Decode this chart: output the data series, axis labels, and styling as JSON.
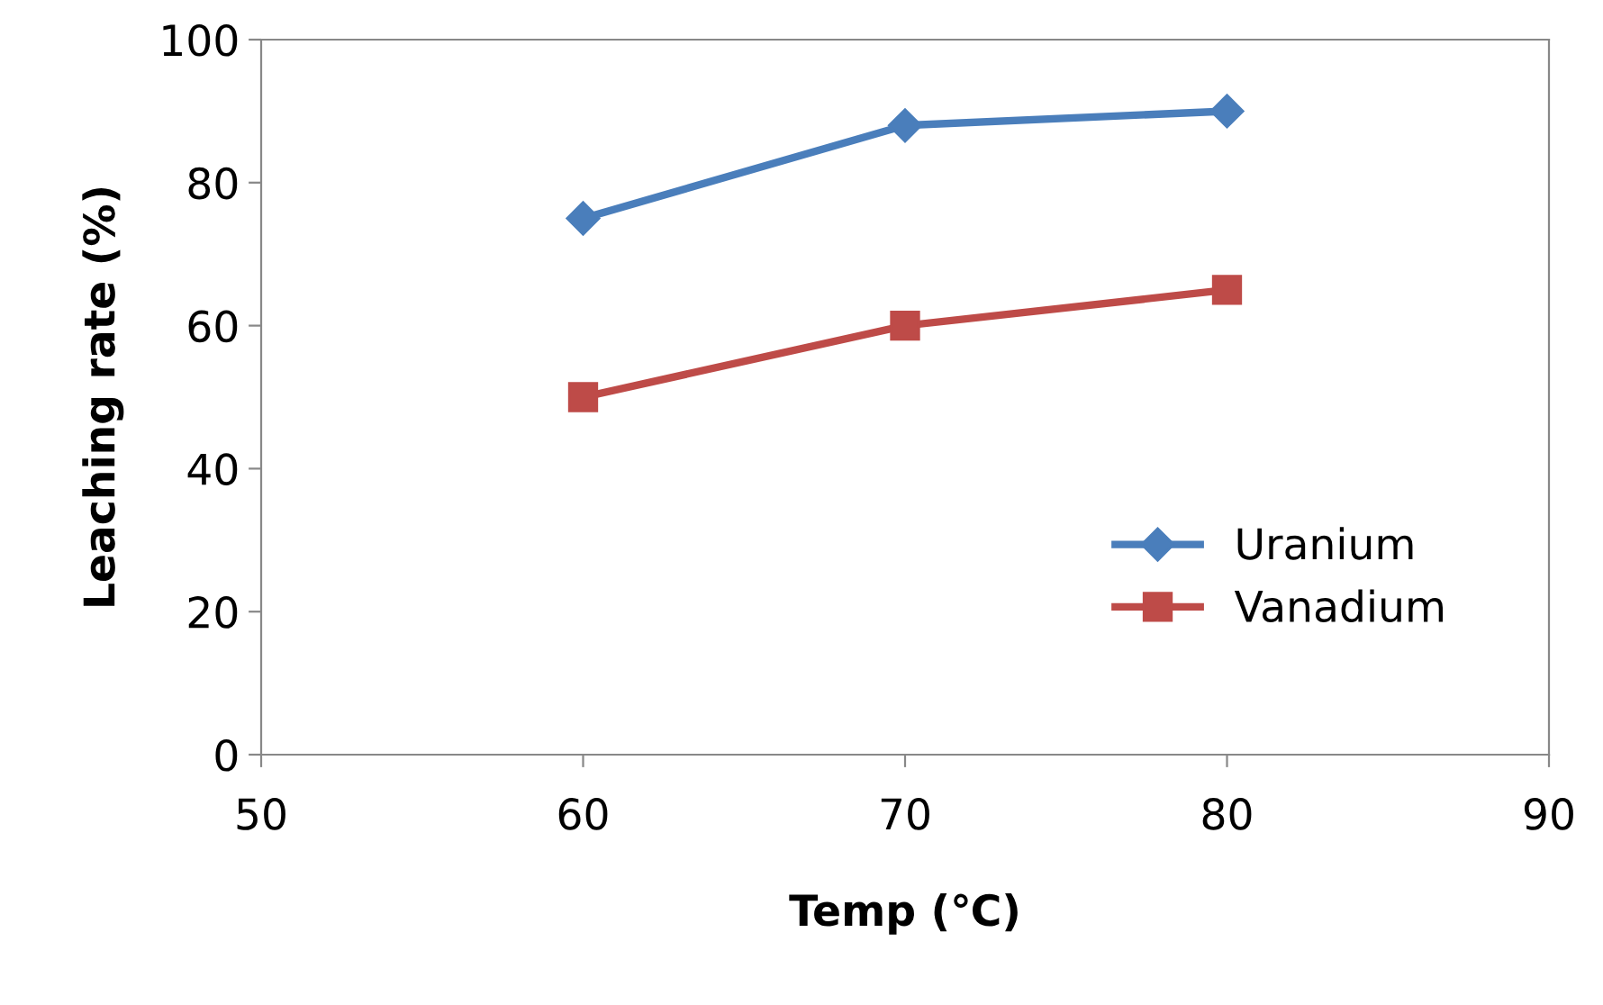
{
  "chart_data": {
    "type": "line",
    "xlabel": "Temp (℃)",
    "ylabel": "Leaching rate (%)",
    "x": [
      60,
      70,
      80
    ],
    "series": [
      {
        "name": "Uranium",
        "color": "#4a7ebb",
        "values": [
          75,
          88,
          90
        ],
        "marker": "diamond"
      },
      {
        "name": "Vanadium",
        "color": "#be4b48",
        "values": [
          50,
          60,
          65
        ],
        "marker": "square"
      }
    ],
    "xlim": [
      50,
      90
    ],
    "xticks": [
      50,
      60,
      70,
      80,
      90
    ],
    "ylim": [
      0,
      100
    ],
    "yticks": [
      0,
      20,
      40,
      60,
      80,
      100
    ],
    "grid": false,
    "legend": "bottom right",
    "line_style": "solid"
  }
}
